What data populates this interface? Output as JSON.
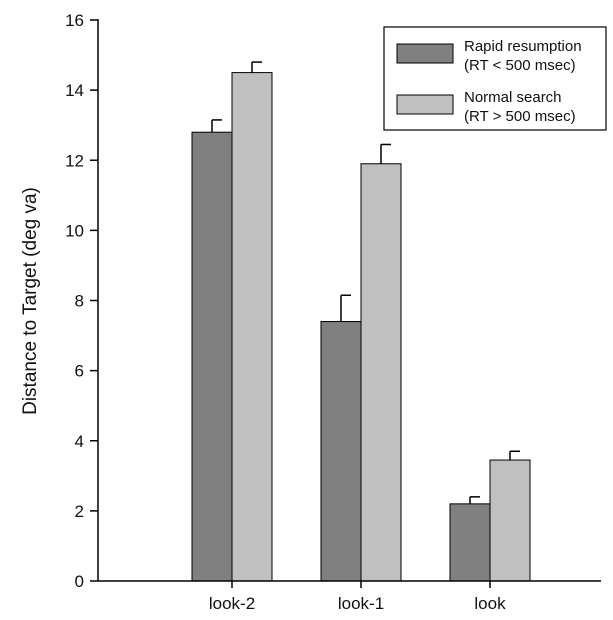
{
  "chart_data": {
    "type": "bar",
    "title": "",
    "xlabel": "",
    "ylabel": "Distance to Target (deg va)",
    "ylim": [
      0,
      16
    ],
    "yticks": [
      0,
      2,
      4,
      6,
      8,
      10,
      12,
      14,
      16
    ],
    "categories": [
      "look-2",
      "look-1",
      "look"
    ],
    "series": [
      {
        "name": "Rapid resumption",
        "name_line2": "(RT < 500 msec)",
        "values": [
          12.8,
          7.4,
          2.2
        ],
        "errors": [
          0.35,
          0.75,
          0.2
        ],
        "color": "#808080"
      },
      {
        "name": "Normal search",
        "name_line2": "(RT > 500 msec)",
        "values": [
          14.5,
          11.9,
          3.45
        ],
        "errors": [
          0.3,
          0.55,
          0.25
        ],
        "color": "#c0c0c0"
      }
    ],
    "grid": false,
    "legend_position": "top-right"
  }
}
